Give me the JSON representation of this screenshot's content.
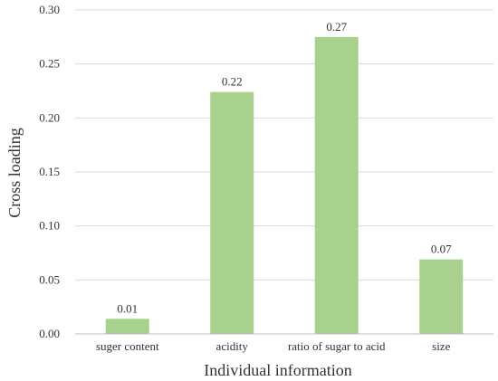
{
  "chart_data": {
    "type": "bar",
    "categories": [
      "suger content",
      "acidity",
      "ratio of sugar to acid",
      "size"
    ],
    "values": [
      0.014,
      0.224,
      0.275,
      0.069
    ],
    "data_labels": [
      "0.01",
      "0.22",
      "0.27",
      "0.07"
    ],
    "xlabel": "Individual information",
    "ylabel": "Cross loading",
    "ylim": [
      0,
      0.3
    ],
    "yticks": [
      0.0,
      0.05,
      0.1,
      0.15,
      0.2,
      0.25,
      0.3
    ],
    "ytick_labels": [
      "0.00",
      "0.05",
      "0.10",
      "0.15",
      "0.20",
      "0.25",
      "0.30"
    ],
    "grid": true,
    "legend": "none",
    "bar_color": "#a9d18e"
  }
}
